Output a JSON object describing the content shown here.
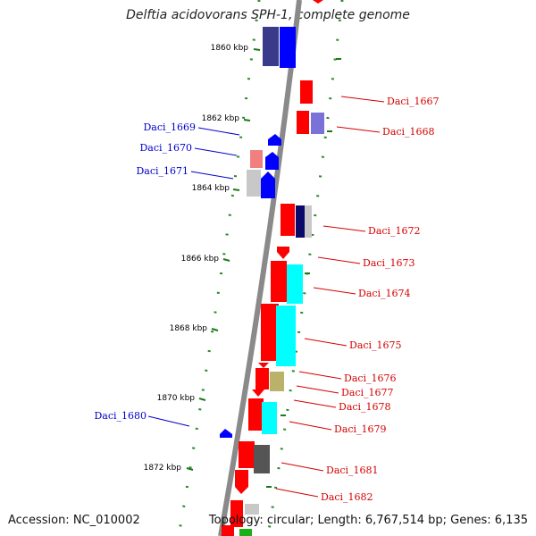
{
  "title": "Delftia acidovorans SPH-1, complete genome",
  "accession": "Accession: NC_010002",
  "summary": "Topology: circular; Length: 6,767,514 bp; Genes: 6,135",
  "ticks": [
    {
      "label": "1860 kbp"
    },
    {
      "label": "1862 kbp"
    },
    {
      "label": "1864 kbp"
    },
    {
      "label": "1866 kbp"
    },
    {
      "label": "1868 kbp"
    },
    {
      "label": "1870 kbp"
    },
    {
      "label": "1872 kbp"
    }
  ],
  "gene_labels": [
    {
      "text": "Daci_1667",
      "strand": "forward"
    },
    {
      "text": "Daci_1668",
      "strand": "forward"
    },
    {
      "text": "Daci_1669",
      "strand": "reverse"
    },
    {
      "text": "Daci_1670",
      "strand": "reverse"
    },
    {
      "text": "Daci_1671",
      "strand": "reverse"
    },
    {
      "text": "Daci_1672",
      "strand": "forward"
    },
    {
      "text": "Daci_1673",
      "strand": "forward"
    },
    {
      "text": "Daci_1674",
      "strand": "forward"
    },
    {
      "text": "Daci_1675",
      "strand": "forward"
    },
    {
      "text": "Daci_1676",
      "strand": "forward"
    },
    {
      "text": "Daci_1677",
      "strand": "forward"
    },
    {
      "text": "Daci_1678",
      "strand": "forward"
    },
    {
      "text": "Daci_1679",
      "strand": "forward"
    },
    {
      "text": "Daci_1680",
      "strand": "reverse"
    },
    {
      "text": "Daci_1681",
      "strand": "forward"
    },
    {
      "text": "Daci_1682",
      "strand": "forward"
    }
  ],
  "colors": {
    "forward_gene": "#ff0000",
    "reverse_gene": "#0000ff",
    "backbone": "#888888",
    "tick": "#008000",
    "label_forward": "#d40000",
    "label_reverse": "#0000c8"
  }
}
